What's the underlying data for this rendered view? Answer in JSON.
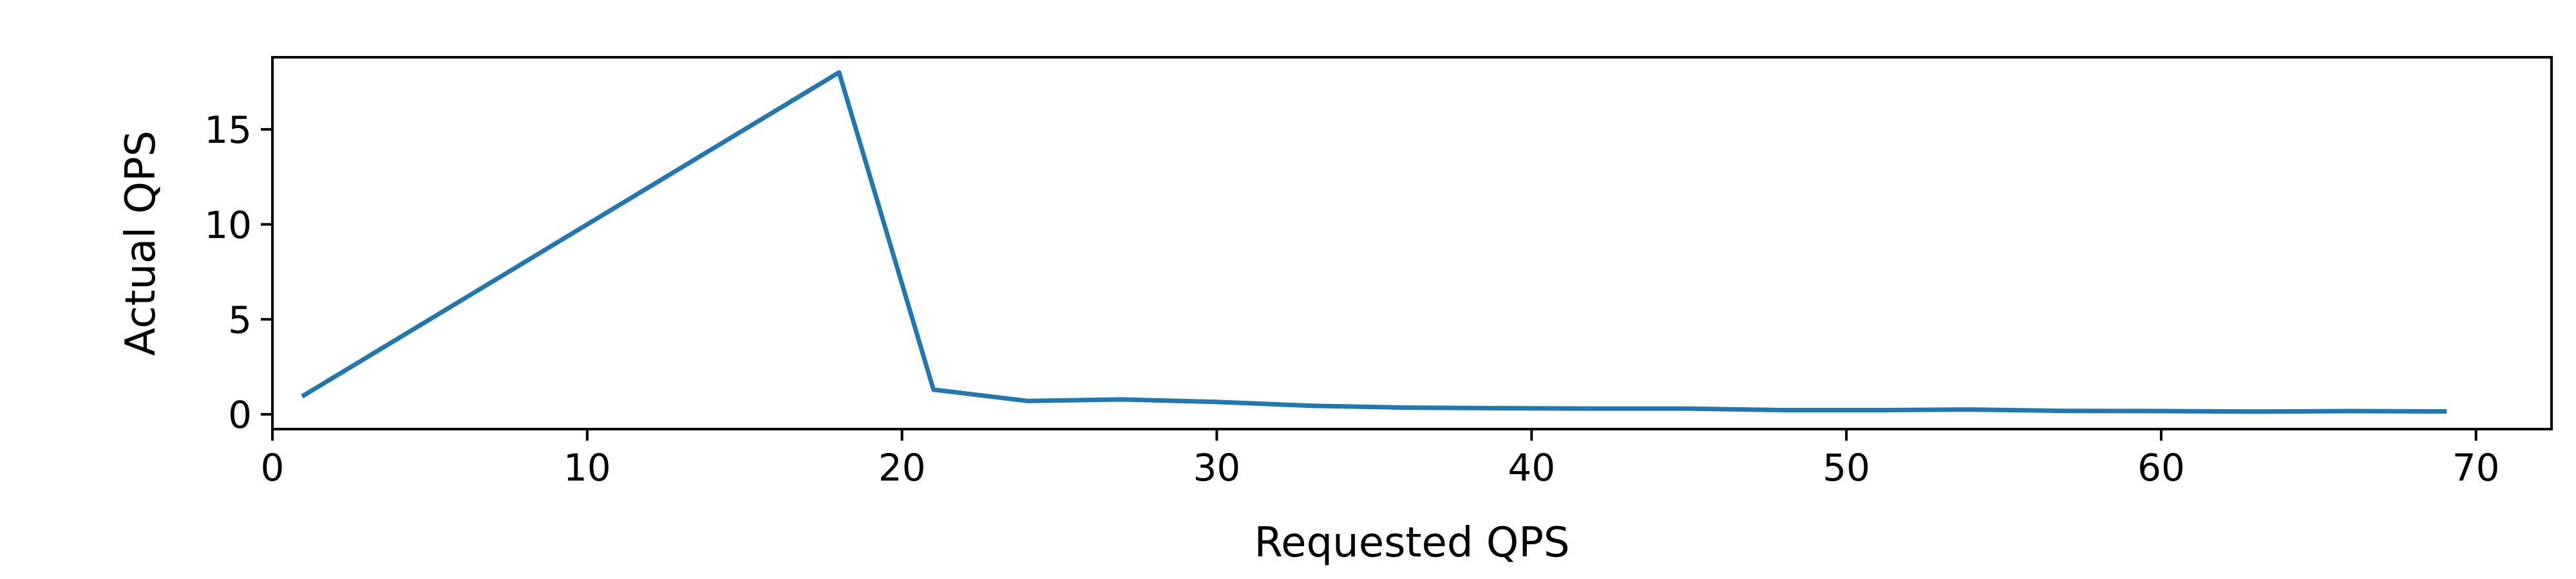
{
  "chart_data": {
    "type": "line",
    "xlabel": "Requested QPS",
    "ylabel": "Actual QPS",
    "xlim": [
      0,
      72.4
    ],
    "ylim": [
      -0.78,
      18.8
    ],
    "xticks": [
      0,
      10,
      20,
      30,
      40,
      50,
      60,
      70
    ],
    "yticks": [
      0,
      5,
      10,
      15
    ],
    "grid": false,
    "series": [
      {
        "color": "#1f77b4",
        "x": [
          1,
          18,
          21,
          24,
          27,
          30,
          33,
          36,
          39,
          42,
          45,
          48,
          51,
          54,
          57,
          60,
          63,
          66,
          69
        ],
        "y": [
          1.0,
          18.0,
          1.3,
          0.7,
          0.78,
          0.65,
          0.45,
          0.35,
          0.32,
          0.3,
          0.3,
          0.22,
          0.22,
          0.25,
          0.18,
          0.17,
          0.14,
          0.17,
          0.15
        ]
      }
    ]
  }
}
